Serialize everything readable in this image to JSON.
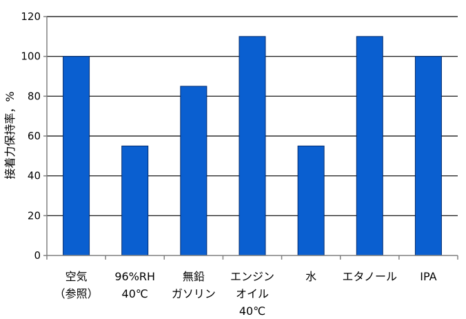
{
  "chart_data": {
    "type": "bar",
    "categories": [
      [
        "空気",
        "（参照）"
      ],
      [
        "96%RH",
        "40℃"
      ],
      [
        "無鉛",
        "ガソリン"
      ],
      [
        "エンジン",
        "オイル",
        "40℃"
      ],
      [
        "水"
      ],
      [
        "エタノール"
      ],
      [
        "IPA"
      ]
    ],
    "values": [
      100,
      55,
      85,
      110,
      55,
      110,
      100
    ],
    "ylabel": "接着力保持率，%",
    "xlabel": "",
    "title": "",
    "ylim": [
      0,
      120
    ],
    "yticks": [
      0,
      20,
      40,
      60,
      80,
      100,
      120
    ],
    "grid": true,
    "colors": {
      "bar": "#0a5fd0",
      "bar_edge": "#002a6e",
      "grid": "#000000",
      "axis": "#808080"
    }
  }
}
